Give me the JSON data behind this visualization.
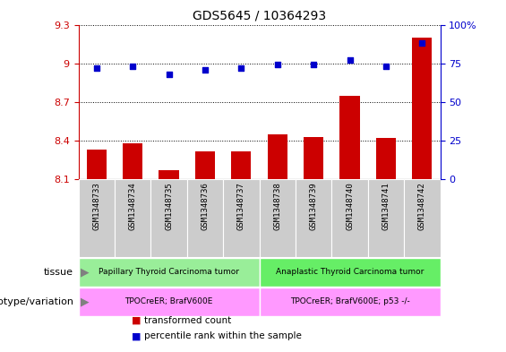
{
  "title": "GDS5645 / 10364293",
  "samples": [
    "GSM1348733",
    "GSM1348734",
    "GSM1348735",
    "GSM1348736",
    "GSM1348737",
    "GSM1348738",
    "GSM1348739",
    "GSM1348740",
    "GSM1348741",
    "GSM1348742"
  ],
  "transformed_count": [
    8.33,
    8.38,
    8.17,
    8.32,
    8.32,
    8.45,
    8.43,
    8.75,
    8.42,
    9.2
  ],
  "percentile_rank": [
    72,
    73,
    68,
    71,
    72,
    74,
    74,
    77,
    73,
    88
  ],
  "ylim_left": [
    8.1,
    9.3
  ],
  "ylim_right": [
    0,
    100
  ],
  "yticks_left": [
    8.1,
    8.4,
    8.7,
    9.0,
    9.3
  ],
  "yticks_right": [
    0,
    25,
    50,
    75,
    100
  ],
  "ytick_labels_left": [
    "8.1",
    "8.4",
    "8.7",
    "9",
    "9.3"
  ],
  "ytick_labels_right": [
    "0",
    "25",
    "50",
    "75",
    "100%"
  ],
  "bar_color": "#cc0000",
  "dot_color": "#0000cc",
  "tissue_groups": [
    {
      "text": "Papillary Thyroid Carcinoma tumor",
      "start": 0,
      "end": 4,
      "color": "#99ee99"
    },
    {
      "text": "Anaplastic Thyroid Carcinoma tumor",
      "start": 5,
      "end": 9,
      "color": "#66ee66"
    }
  ],
  "genotype_groups": [
    {
      "text": "TPOCreER; BrafV600E",
      "start": 0,
      "end": 4,
      "color": "#ff99ff"
    },
    {
      "text": "TPOCreER; BrafV600E; p53 -/-",
      "start": 5,
      "end": 9,
      "color": "#ff99ff"
    }
  ],
  "legend_items": [
    {
      "label": "transformed count",
      "color": "#cc0000"
    },
    {
      "label": "percentile rank within the sample",
      "color": "#0000cc"
    }
  ],
  "tick_bg_color": "#cccccc",
  "n_samples": 10
}
